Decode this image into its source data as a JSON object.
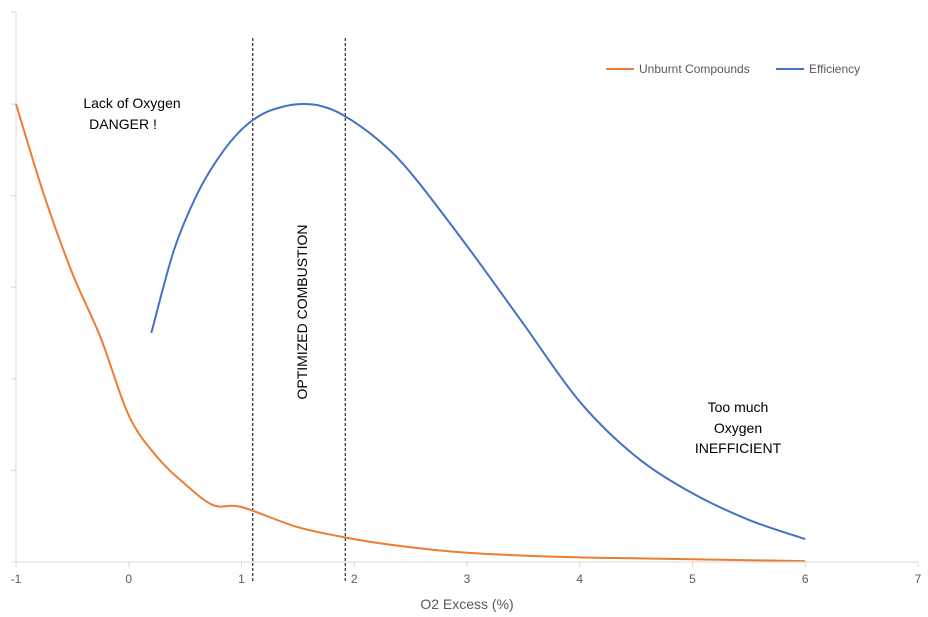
{
  "chart_data": {
    "type": "line",
    "title": "",
    "xlabel": "O2 Excess (%)",
    "ylabel": "",
    "xlim": [
      -1,
      7
    ],
    "ylim": [
      0,
      5
    ],
    "x_ticks": [
      -1,
      0,
      1,
      2,
      3,
      4,
      5,
      6,
      7
    ],
    "y_tick_marks": [
      0,
      1,
      2,
      3,
      4,
      5
    ],
    "y_tick_labels_shown": false,
    "grid": false,
    "legend": {
      "placement": "top-right"
    },
    "series": [
      {
        "name": "Unburnt Compounds",
        "color": "#ed7d31",
        "x": [
          -1,
          -0.75,
          -0.5,
          -0.25,
          0,
          0.25,
          0.5,
          0.75,
          1,
          1.5,
          2,
          2.5,
          3,
          3.5,
          4,
          4.5,
          5,
          5.5,
          6
        ],
        "y": [
          5.0,
          4.0,
          3.15,
          2.45,
          1.6,
          1.15,
          0.85,
          0.62,
          0.6,
          0.38,
          0.25,
          0.16,
          0.1,
          0.07,
          0.05,
          0.04,
          0.03,
          0.02,
          0.01
        ]
      },
      {
        "name": "Efficiency",
        "color": "#4472c4",
        "x": [
          0.2,
          0.4,
          0.6,
          0.8,
          1.0,
          1.2,
          1.4,
          1.55,
          1.7,
          1.9,
          2.2,
          2.5,
          3.0,
          3.5,
          4.0,
          4.5,
          5.0,
          5.5,
          6.0
        ],
        "y": [
          2.5,
          3.4,
          4.0,
          4.42,
          4.72,
          4.9,
          4.98,
          5.0,
          4.98,
          4.88,
          4.62,
          4.25,
          3.45,
          2.6,
          1.75,
          1.15,
          0.75,
          0.46,
          0.25
        ]
      }
    ],
    "vertical_lines": [
      1.1,
      1.92
    ],
    "annotations": {
      "lack": [
        "Lack of Oxygen",
        "DANGER !"
      ],
      "optimized": "OPTIMIZED COMBUSTION",
      "toomuch": [
        "Too much",
        "Oxygen",
        "INEFFICIENT"
      ]
    }
  }
}
